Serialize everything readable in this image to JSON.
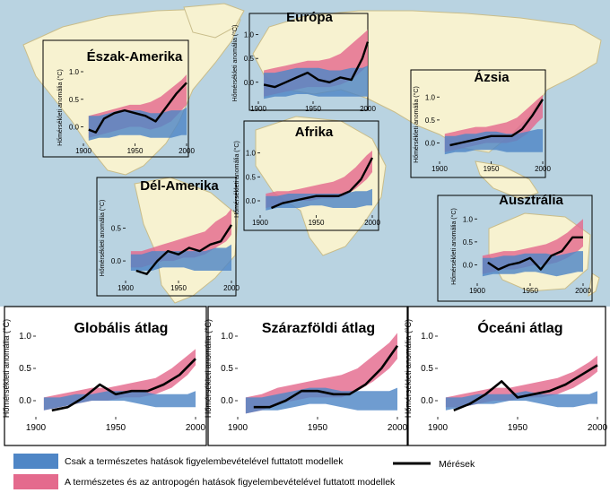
{
  "colors": {
    "ocean": "#b9d3e1",
    "land": "#f7f2d0",
    "landEdge": "#c9bd8a",
    "natural": "#4f86c6",
    "anthro": "#e46a8d",
    "observed": "#000000"
  },
  "legend": {
    "natural": "Csak a természetes hatások figyelembevételével futtatott modellek",
    "anthro": "A természetes és az antropogén hatások figyelembevételével futtatott modellek",
    "observed": "Mérések"
  },
  "chart_data": [
    {
      "id": "eszak-amerika",
      "type": "area",
      "title": "Észak-Amerika",
      "ylabel": "Hőmérsékleti anomália (°C)",
      "xlim": [
        1900,
        2000
      ],
      "ylim": [
        -0.3,
        1.0
      ],
      "xticks": [
        1900,
        1950,
        2000
      ],
      "yticks": [
        0.0,
        0.5,
        1.0
      ],
      "ytick_labels": [
        "0.0",
        "0.5",
        "1.0"
      ],
      "x": [
        1905,
        1915,
        1925,
        1935,
        1945,
        1955,
        1965,
        1975,
        1985,
        1995,
        2000
      ],
      "natural_low": [
        -0.25,
        -0.2,
        -0.2,
        -0.15,
        -0.15,
        -0.15,
        -0.2,
        -0.2,
        -0.2,
        -0.15,
        -0.15
      ],
      "natural_high": [
        0.2,
        0.2,
        0.25,
        0.3,
        0.3,
        0.3,
        0.25,
        0.25,
        0.3,
        0.3,
        0.35
      ],
      "anthro_low": [
        -0.2,
        -0.15,
        -0.1,
        -0.05,
        0.0,
        0.0,
        -0.05,
        0.0,
        0.1,
        0.3,
        0.4
      ],
      "anthro_high": [
        0.2,
        0.25,
        0.3,
        0.35,
        0.4,
        0.4,
        0.45,
        0.55,
        0.7,
        0.85,
        0.95
      ],
      "observed_x": [
        1905,
        1912,
        1920,
        1930,
        1940,
        1950,
        1960,
        1970,
        1980,
        1990,
        2000
      ],
      "observed": [
        -0.05,
        -0.1,
        0.15,
        0.25,
        0.3,
        0.25,
        0.2,
        0.1,
        0.35,
        0.6,
        0.8
      ]
    },
    {
      "id": "europa",
      "type": "area",
      "title": "Európa",
      "ylabel": "Hőmérsékleti anomália (°C)",
      "xlim": [
        1900,
        2000
      ],
      "ylim": [
        -0.4,
        1.2
      ],
      "xticks": [
        1900,
        1950,
        2000
      ],
      "yticks": [
        0.0,
        0.5,
        1.0
      ],
      "ytick_labels": [
        "0.0",
        "0.5",
        "1.0"
      ],
      "x": [
        1905,
        1915,
        1925,
        1935,
        1945,
        1955,
        1965,
        1975,
        1985,
        1995,
        2000
      ],
      "natural_low": [
        -0.35,
        -0.3,
        -0.3,
        -0.25,
        -0.25,
        -0.3,
        -0.3,
        -0.3,
        -0.3,
        -0.3,
        -0.3
      ],
      "natural_high": [
        0.2,
        0.2,
        0.25,
        0.3,
        0.3,
        0.3,
        0.25,
        0.25,
        0.3,
        0.3,
        0.35
      ],
      "anthro_low": [
        -0.3,
        -0.25,
        -0.2,
        -0.15,
        -0.1,
        -0.1,
        -0.1,
        -0.05,
        0.05,
        0.25,
        0.35
      ],
      "anthro_high": [
        0.25,
        0.3,
        0.35,
        0.4,
        0.45,
        0.45,
        0.5,
        0.6,
        0.8,
        1.0,
        1.1
      ],
      "observed_x": [
        1905,
        1915,
        1925,
        1935,
        1945,
        1955,
        1965,
        1975,
        1985,
        1995,
        2000
      ],
      "observed": [
        -0.05,
        -0.1,
        0.0,
        0.1,
        0.2,
        0.05,
        0.0,
        0.1,
        0.05,
        0.5,
        0.85
      ]
    },
    {
      "id": "azsia",
      "type": "area",
      "title": "Ázsia",
      "ylabel": "Hőmérsékleti anomália (°C)",
      "xlim": [
        1900,
        2000
      ],
      "ylim": [
        -0.4,
        1.2
      ],
      "xticks": [
        1900,
        1950,
        2000
      ],
      "yticks": [
        0.0,
        0.5,
        1.0
      ],
      "ytick_labels": [
        "0.0",
        "0.5",
        "1.0"
      ],
      "x": [
        1905,
        1915,
        1925,
        1935,
        1945,
        1955,
        1965,
        1975,
        1985,
        1995,
        2000
      ],
      "natural_low": [
        -0.25,
        -0.2,
        -0.2,
        -0.15,
        -0.15,
        -0.15,
        -0.2,
        -0.2,
        -0.2,
        -0.2,
        -0.2
      ],
      "natural_high": [
        0.15,
        0.15,
        0.2,
        0.2,
        0.25,
        0.25,
        0.2,
        0.2,
        0.25,
        0.3,
        0.3
      ],
      "anthro_low": [
        -0.2,
        -0.15,
        -0.1,
        -0.05,
        0.0,
        0.0,
        0.0,
        0.05,
        0.2,
        0.45,
        0.55
      ],
      "anthro_high": [
        0.2,
        0.25,
        0.3,
        0.35,
        0.35,
        0.4,
        0.45,
        0.55,
        0.75,
        0.95,
        1.05
      ],
      "observed_x": [
        1910,
        1920,
        1930,
        1940,
        1950,
        1960,
        1970,
        1980,
        1990,
        2000
      ],
      "observed": [
        -0.05,
        0.0,
        0.05,
        0.1,
        0.15,
        0.15,
        0.15,
        0.3,
        0.6,
        0.95
      ]
    },
    {
      "id": "afrika",
      "type": "area",
      "title": "Afrika",
      "ylabel": "Hőmérsékleti anomália (°C)",
      "xlim": [
        1900,
        2000
      ],
      "ylim": [
        -0.3,
        1.2
      ],
      "xticks": [
        1900,
        1950,
        2000
      ],
      "yticks": [
        0.0,
        0.5,
        1.0
      ],
      "ytick_labels": [
        "0.0",
        "0.5",
        "1.0"
      ],
      "x": [
        1905,
        1915,
        1925,
        1935,
        1945,
        1955,
        1965,
        1975,
        1985,
        1995,
        2000
      ],
      "natural_low": [
        -0.2,
        -0.15,
        -0.15,
        -0.15,
        -0.1,
        -0.1,
        -0.15,
        -0.15,
        -0.15,
        -0.1,
        -0.1
      ],
      "natural_high": [
        0.1,
        0.1,
        0.15,
        0.15,
        0.15,
        0.15,
        0.15,
        0.15,
        0.2,
        0.2,
        0.25
      ],
      "anthro_low": [
        -0.15,
        -0.1,
        -0.05,
        0.0,
        0.0,
        0.05,
        0.05,
        0.1,
        0.25,
        0.45,
        0.6
      ],
      "anthro_high": [
        0.15,
        0.2,
        0.2,
        0.25,
        0.3,
        0.35,
        0.4,
        0.5,
        0.7,
        0.95,
        1.05
      ],
      "observed_x": [
        1910,
        1920,
        1930,
        1940,
        1950,
        1960,
        1970,
        1980,
        1990,
        2000
      ],
      "observed": [
        -0.15,
        -0.05,
        0.0,
        0.05,
        0.1,
        0.1,
        0.1,
        0.2,
        0.45,
        0.9
      ]
    },
    {
      "id": "del-amerika",
      "type": "area",
      "title": "Dél-Amerika",
      "ylabel": "Hőmérsékleti anomália (°C)",
      "xlim": [
        1900,
        2000
      ],
      "ylim": [
        -0.3,
        1.0
      ],
      "xticks": [
        1900,
        1950,
        2000
      ],
      "yticks": [
        0.0,
        0.5
      ],
      "ytick_labels": [
        "0.0",
        "0.5"
      ],
      "x": [
        1905,
        1915,
        1925,
        1935,
        1945,
        1955,
        1965,
        1975,
        1985,
        1995,
        2000
      ],
      "natural_low": [
        -0.15,
        -0.15,
        -0.15,
        -0.1,
        -0.1,
        -0.1,
        -0.15,
        -0.15,
        -0.15,
        -0.15,
        -0.15
      ],
      "natural_high": [
        0.1,
        0.1,
        0.15,
        0.15,
        0.15,
        0.15,
        0.15,
        0.15,
        0.2,
        0.2,
        0.25
      ],
      "anthro_low": [
        -0.1,
        -0.1,
        -0.05,
        0.0,
        0.0,
        0.05,
        0.05,
        0.1,
        0.2,
        0.3,
        0.4
      ],
      "anthro_high": [
        0.15,
        0.15,
        0.2,
        0.25,
        0.3,
        0.35,
        0.4,
        0.45,
        0.6,
        0.7,
        0.8
      ],
      "observed_x": [
        1910,
        1920,
        1930,
        1940,
        1950,
        1960,
        1970,
        1980,
        1990,
        2000
      ],
      "observed": [
        -0.15,
        -0.2,
        0.0,
        0.15,
        0.1,
        0.2,
        0.15,
        0.25,
        0.3,
        0.55
      ]
    },
    {
      "id": "ausztralia",
      "type": "area",
      "title": "Ausztrália",
      "ylabel": "Hőmérsékleti anomália (°C)",
      "xlim": [
        1900,
        2000
      ],
      "ylim": [
        -0.4,
        1.2
      ],
      "xticks": [
        1900,
        1950,
        2000
      ],
      "yticks": [
        0.0,
        0.5,
        1.0
      ],
      "ytick_labels": [
        "0.0",
        "0.5",
        "1.0"
      ],
      "x": [
        1905,
        1915,
        1925,
        1935,
        1945,
        1955,
        1965,
        1975,
        1985,
        1995,
        2000
      ],
      "natural_low": [
        -0.25,
        -0.2,
        -0.2,
        -0.2,
        -0.15,
        -0.15,
        -0.2,
        -0.25,
        -0.2,
        -0.15,
        -0.15
      ],
      "natural_high": [
        0.15,
        0.15,
        0.2,
        0.2,
        0.25,
        0.25,
        0.25,
        0.2,
        0.25,
        0.3,
        0.3
      ],
      "anthro_low": [
        -0.2,
        -0.15,
        -0.1,
        -0.1,
        -0.05,
        0.0,
        0.0,
        0.05,
        0.15,
        0.3,
        0.4
      ],
      "anthro_high": [
        0.2,
        0.25,
        0.3,
        0.3,
        0.35,
        0.4,
        0.45,
        0.55,
        0.7,
        0.9,
        1.0
      ],
      "observed_x": [
        1910,
        1920,
        1930,
        1940,
        1950,
        1960,
        1970,
        1980,
        1990,
        2000
      ],
      "observed": [
        0.05,
        -0.1,
        0.0,
        0.05,
        0.15,
        -0.1,
        0.2,
        0.3,
        0.6,
        0.6
      ]
    },
    {
      "id": "globalis",
      "type": "area",
      "title": "Globális átlag",
      "ylabel": "Hőmérsékleti anomália (°C)",
      "xlim": [
        1900,
        2000
      ],
      "ylim": [
        -0.25,
        1.25
      ],
      "xticks": [
        1900,
        1950,
        2000
      ],
      "yticks": [
        0.0,
        0.5,
        1.0
      ],
      "ytick_labels": [
        "0.0",
        "0.5",
        "1.0"
      ],
      "x": [
        1905,
        1915,
        1925,
        1935,
        1945,
        1955,
        1965,
        1975,
        1985,
        1995,
        2000
      ],
      "natural_low": [
        -0.15,
        -0.1,
        -0.05,
        0.0,
        0.0,
        0.0,
        -0.05,
        -0.1,
        -0.1,
        -0.1,
        -0.1
      ],
      "natural_high": [
        0.05,
        0.05,
        0.1,
        0.1,
        0.15,
        0.15,
        0.15,
        0.1,
        0.1,
        0.1,
        0.15
      ],
      "anthro_low": [
        -0.15,
        -0.1,
        -0.05,
        0.0,
        0.0,
        0.05,
        0.05,
        0.1,
        0.2,
        0.4,
        0.55
      ],
      "anthro_high": [
        0.05,
        0.1,
        0.15,
        0.2,
        0.2,
        0.25,
        0.3,
        0.35,
        0.5,
        0.7,
        0.8
      ],
      "observed_x": [
        1910,
        1920,
        1930,
        1940,
        1950,
        1960,
        1970,
        1980,
        1990,
        2000
      ],
      "observed": [
        -0.15,
        -0.1,
        0.05,
        0.25,
        0.1,
        0.15,
        0.15,
        0.25,
        0.4,
        0.65
      ]
    },
    {
      "id": "szarazfoldi",
      "type": "area",
      "title": "Szárazföldi átlag",
      "ylabel": "Hőmérsékleti anomália (°C)",
      "xlim": [
        1900,
        2000
      ],
      "ylim": [
        -0.25,
        1.25
      ],
      "xticks": [
        1900,
        1950,
        2000
      ],
      "yticks": [
        0.0,
        0.5,
        1.0
      ],
      "ytick_labels": [
        "0.0",
        "0.5",
        "1.0"
      ],
      "x": [
        1905,
        1915,
        1925,
        1935,
        1945,
        1955,
        1965,
        1975,
        1985,
        1995,
        2000
      ],
      "natural_low": [
        -0.2,
        -0.15,
        -0.15,
        -0.1,
        -0.05,
        -0.05,
        -0.1,
        -0.15,
        -0.15,
        -0.15,
        -0.15
      ],
      "natural_high": [
        0.05,
        0.05,
        0.1,
        0.15,
        0.2,
        0.2,
        0.15,
        0.15,
        0.15,
        0.15,
        0.2
      ],
      "anthro_low": [
        -0.2,
        -0.15,
        -0.05,
        0.0,
        0.05,
        0.05,
        0.05,
        0.15,
        0.3,
        0.5,
        0.65
      ],
      "anthro_high": [
        0.05,
        0.1,
        0.2,
        0.25,
        0.3,
        0.35,
        0.4,
        0.5,
        0.7,
        0.9,
        1.05
      ],
      "observed_x": [
        1910,
        1920,
        1930,
        1940,
        1950,
        1960,
        1970,
        1980,
        1990,
        2000
      ],
      "observed": [
        -0.1,
        -0.1,
        0.0,
        0.15,
        0.15,
        0.1,
        0.1,
        0.25,
        0.5,
        0.85
      ]
    },
    {
      "id": "oceani",
      "type": "area",
      "title": "Óceáni átlag",
      "ylabel": "Hőmérsékleti anomália (°C)",
      "xlim": [
        1900,
        2000
      ],
      "ylim": [
        -0.25,
        1.25
      ],
      "xticks": [
        1900,
        1950,
        2000
      ],
      "yticks": [
        0.0,
        0.5,
        1.0
      ],
      "ytick_labels": [
        "0.0",
        "0.5",
        "1.0"
      ],
      "x": [
        1905,
        1915,
        1925,
        1935,
        1945,
        1955,
        1965,
        1975,
        1985,
        1995,
        2000
      ],
      "natural_low": [
        -0.15,
        -0.1,
        -0.05,
        -0.05,
        0.0,
        0.0,
        -0.05,
        -0.1,
        -0.1,
        -0.05,
        -0.05
      ],
      "natural_high": [
        0.05,
        0.05,
        0.1,
        0.1,
        0.1,
        0.15,
        0.1,
        0.1,
        0.1,
        0.1,
        0.15
      ],
      "anthro_low": [
        -0.1,
        -0.1,
        -0.05,
        0.0,
        0.0,
        0.05,
        0.05,
        0.1,
        0.2,
        0.35,
        0.45
      ],
      "anthro_high": [
        0.05,
        0.1,
        0.15,
        0.2,
        0.2,
        0.25,
        0.3,
        0.35,
        0.45,
        0.6,
        0.7
      ],
      "observed_x": [
        1910,
        1920,
        1930,
        1940,
        1950,
        1960,
        1970,
        1980,
        1990,
        2000
      ],
      "observed": [
        -0.15,
        -0.05,
        0.1,
        0.3,
        0.05,
        0.1,
        0.15,
        0.25,
        0.4,
        0.55
      ]
    }
  ]
}
